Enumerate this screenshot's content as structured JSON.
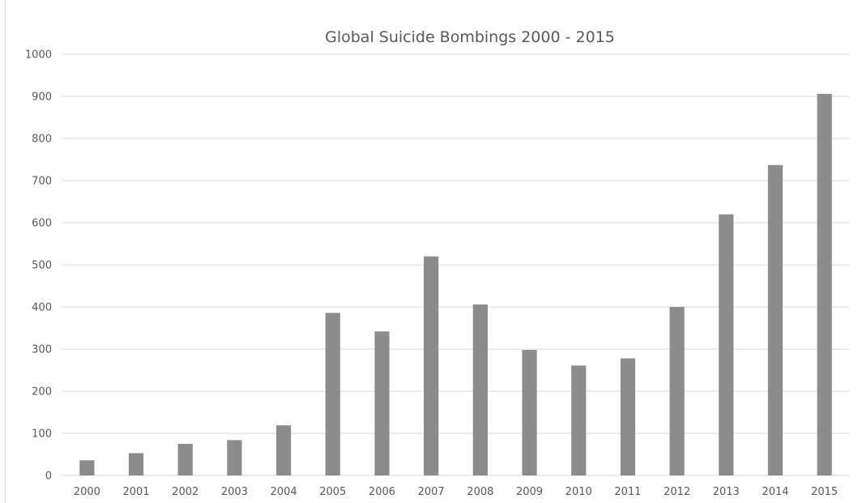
{
  "chart_data": {
    "type": "bar",
    "title": "Global Suicide Bombings 2000 - 2015",
    "xlabel": "",
    "ylabel": "",
    "categories": [
      "2000",
      "2001",
      "2002",
      "2003",
      "2004",
      "2005",
      "2006",
      "2007",
      "2008",
      "2009",
      "2010",
      "2011",
      "2012",
      "2013",
      "2014",
      "2015"
    ],
    "values": [
      36,
      53,
      75,
      84,
      119,
      386,
      342,
      520,
      406,
      298,
      261,
      278,
      400,
      620,
      737,
      906
    ],
    "ylim": [
      0,
      1000
    ],
    "yticks": [
      "0",
      "100",
      "200",
      "300",
      "400",
      "500",
      "600",
      "700",
      "800",
      "900",
      "1000"
    ],
    "grid": true,
    "legend": "none",
    "colors": {
      "bar": "#8c8c8c",
      "grid": "#d9d9d9",
      "text": "#595959"
    }
  }
}
